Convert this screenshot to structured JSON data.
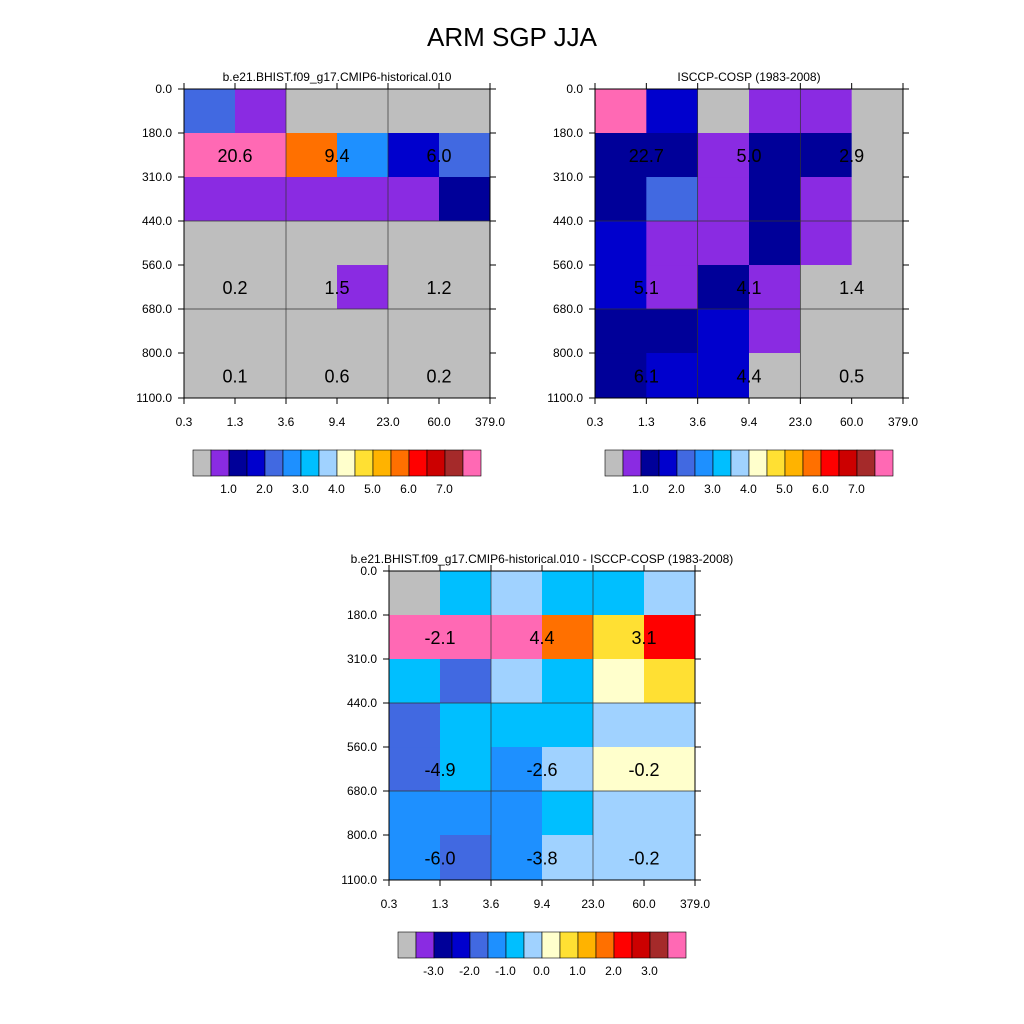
{
  "title": "ARM SGP JJA",
  "chart_data": [
    {
      "type": "heatmap",
      "title": "b.e21.BHIST.f09_g17.CMIP6-historical.010",
      "x_ticks": [
        "0.3",
        "1.3",
        "3.6",
        "9.4",
        "23.0",
        "60.0",
        "379.0"
      ],
      "y_ticks": [
        "0.0",
        "180.0",
        "310.0",
        "440.0",
        "560.0",
        "680.0",
        "800.0",
        "1100.0"
      ],
      "cells": [
        [
          "rb",
          "pu",
          "gr",
          "gr",
          "gr",
          "gr"
        ],
        [
          "pk",
          "pk",
          "or",
          "ds",
          "bl",
          "rb"
        ],
        [
          "pu",
          "pu",
          "pu",
          "pu",
          "pu",
          "nv"
        ],
        [
          "gr",
          "gr",
          "gr",
          "gr",
          "gr",
          "gr"
        ],
        [
          "gr",
          "gr",
          "gr",
          "pu",
          "gr",
          "gr"
        ],
        [
          "gr",
          "gr",
          "gr",
          "gr",
          "gr",
          "gr"
        ],
        [
          "gr",
          "gr",
          "gr",
          "gr",
          "gr",
          "gr"
        ]
      ],
      "labels": [
        {
          "col": 0,
          "row": 1,
          "text": "20.6"
        },
        {
          "col": 2,
          "row": 1,
          "text": "9.4"
        },
        {
          "col": 4,
          "row": 1,
          "text": "6.0"
        },
        {
          "col": 0,
          "row": 4,
          "text": "0.2"
        },
        {
          "col": 2,
          "row": 4,
          "text": "1.5"
        },
        {
          "col": 4,
          "row": 4,
          "text": "1.2"
        },
        {
          "col": 0,
          "row": 6,
          "text": "0.1"
        },
        {
          "col": 2,
          "row": 6,
          "text": "0.6"
        },
        {
          "col": 4,
          "row": 6,
          "text": "0.2"
        }
      ],
      "colorbar": {
        "colors": [
          "#bebebe",
          "#8a2be2",
          "#000099",
          "#0000cd",
          "#4169e1",
          "#1e90ff",
          "#00bfff",
          "#a0d2ff",
          "#ffffcc",
          "#ffe033",
          "#ffb300",
          "#ff7000",
          "#ff0000",
          "#cc0000",
          "#a52a2a",
          "#ff69b4"
        ],
        "labels": [
          "1.0",
          "2.0",
          "3.0",
          "4.0",
          "5.0",
          "6.0",
          "7.0"
        ]
      }
    },
    {
      "type": "heatmap",
      "title": "ISCCP-COSP (1983-2008)",
      "x_ticks": [
        "0.3",
        "1.3",
        "3.6",
        "9.4",
        "23.0",
        "60.0",
        "379.0"
      ],
      "y_ticks": [
        "0.0",
        "180.0",
        "310.0",
        "440.0",
        "560.0",
        "680.0",
        "800.0",
        "1100.0"
      ],
      "cells": [
        [
          "pk",
          "bl",
          "gr",
          "pu",
          "pu",
          "gr"
        ],
        [
          "nv",
          "nv",
          "pu",
          "nv",
          "nv",
          "gr"
        ],
        [
          "nv",
          "rb",
          "pu",
          "nv",
          "pu",
          "gr"
        ],
        [
          "bl",
          "pu",
          "pu",
          "nv",
          "pu",
          "gr"
        ],
        [
          "bl",
          "pu",
          "nv",
          "pu",
          "gr",
          "gr"
        ],
        [
          "nv",
          "nv",
          "bl",
          "pu",
          "gr",
          "gr"
        ],
        [
          "nv",
          "bl",
          "bl",
          "gr",
          "gr",
          "gr"
        ]
      ],
      "labels": [
        {
          "col": 0,
          "row": 1,
          "text": "22.7"
        },
        {
          "col": 2,
          "row": 1,
          "text": "5.0"
        },
        {
          "col": 4,
          "row": 1,
          "text": "2.9"
        },
        {
          "col": 0,
          "row": 4,
          "text": "5.1"
        },
        {
          "col": 2,
          "row": 4,
          "text": "4.1"
        },
        {
          "col": 4,
          "row": 4,
          "text": "1.4"
        },
        {
          "col": 0,
          "row": 6,
          "text": "6.1"
        },
        {
          "col": 2,
          "row": 6,
          "text": "4.4"
        },
        {
          "col": 4,
          "row": 6,
          "text": "0.5"
        }
      ],
      "colorbar": {
        "colors": [
          "#bebebe",
          "#8a2be2",
          "#000099",
          "#0000cd",
          "#4169e1",
          "#1e90ff",
          "#00bfff",
          "#a0d2ff",
          "#ffffcc",
          "#ffe033",
          "#ffb300",
          "#ff7000",
          "#ff0000",
          "#cc0000",
          "#a52a2a",
          "#ff69b4"
        ],
        "labels": [
          "1.0",
          "2.0",
          "3.0",
          "4.0",
          "5.0",
          "6.0",
          "7.0"
        ]
      }
    },
    {
      "type": "heatmap",
      "title": "b.e21.BHIST.f09_g17.CMIP6-historical.010 - ISCCP-COSP (1983-2008)",
      "x_ticks": [
        "0.3",
        "1.3",
        "3.6",
        "9.4",
        "23.0",
        "60.0",
        "379.0"
      ],
      "y_ticks": [
        "0.0",
        "180.0",
        "310.0",
        "440.0",
        "560.0",
        "680.0",
        "800.0",
        "1100.0"
      ],
      "cells": [
        [
          "gr",
          "db",
          "lb",
          "db",
          "db",
          "lb"
        ],
        [
          "pk",
          "pk",
          "pk",
          "or",
          "ye",
          "rd"
        ],
        [
          "db",
          "rb",
          "lb",
          "db",
          "ly",
          "ye"
        ],
        [
          "rb",
          "db",
          "db",
          "db",
          "lb",
          "lb"
        ],
        [
          "rb",
          "db",
          "ds",
          "lb",
          "ly",
          "ly"
        ],
        [
          "ds",
          "ds",
          "ds",
          "db",
          "lb",
          "lb"
        ],
        [
          "ds",
          "rb",
          "ds",
          "lb",
          "lb",
          "lb"
        ]
      ],
      "labels": [
        {
          "col": 0,
          "row": 1,
          "text": "-2.1"
        },
        {
          "col": 2,
          "row": 1,
          "text": "4.4"
        },
        {
          "col": 4,
          "row": 1,
          "text": "3.1"
        },
        {
          "col": 0,
          "row": 4,
          "text": "-4.9"
        },
        {
          "col": 2,
          "row": 4,
          "text": "-2.6"
        },
        {
          "col": 4,
          "row": 4,
          "text": "-0.2"
        },
        {
          "col": 0,
          "row": 6,
          "text": "-6.0"
        },
        {
          "col": 2,
          "row": 6,
          "text": "-3.8"
        },
        {
          "col": 4,
          "row": 6,
          "text": "-0.2"
        }
      ],
      "colorbar": {
        "colors": [
          "#bebebe",
          "#8a2be2",
          "#000099",
          "#0000cd",
          "#4169e1",
          "#1e90ff",
          "#00bfff",
          "#a0d2ff",
          "#ffffcc",
          "#ffe033",
          "#ffb300",
          "#ff7000",
          "#ff0000",
          "#cc0000",
          "#a52a2a",
          "#ff69b4"
        ],
        "labels": [
          "-3.0",
          "-2.0",
          "-1.0",
          "0.0",
          "1.0",
          "2.0",
          "3.0"
        ]
      }
    }
  ],
  "palette": {
    "gr": "#bebebe",
    "pu": "#8a2be2",
    "nv": "#000099",
    "bl": "#0000cd",
    "rb": "#4169e1",
    "ds": "#1e90ff",
    "db": "#00bfff",
    "lb": "#a0d2ff",
    "ly": "#ffffcc",
    "ye": "#ffe033",
    "or": "#ff7000",
    "rd": "#ff0000",
    "pk": "#ff69b4"
  }
}
